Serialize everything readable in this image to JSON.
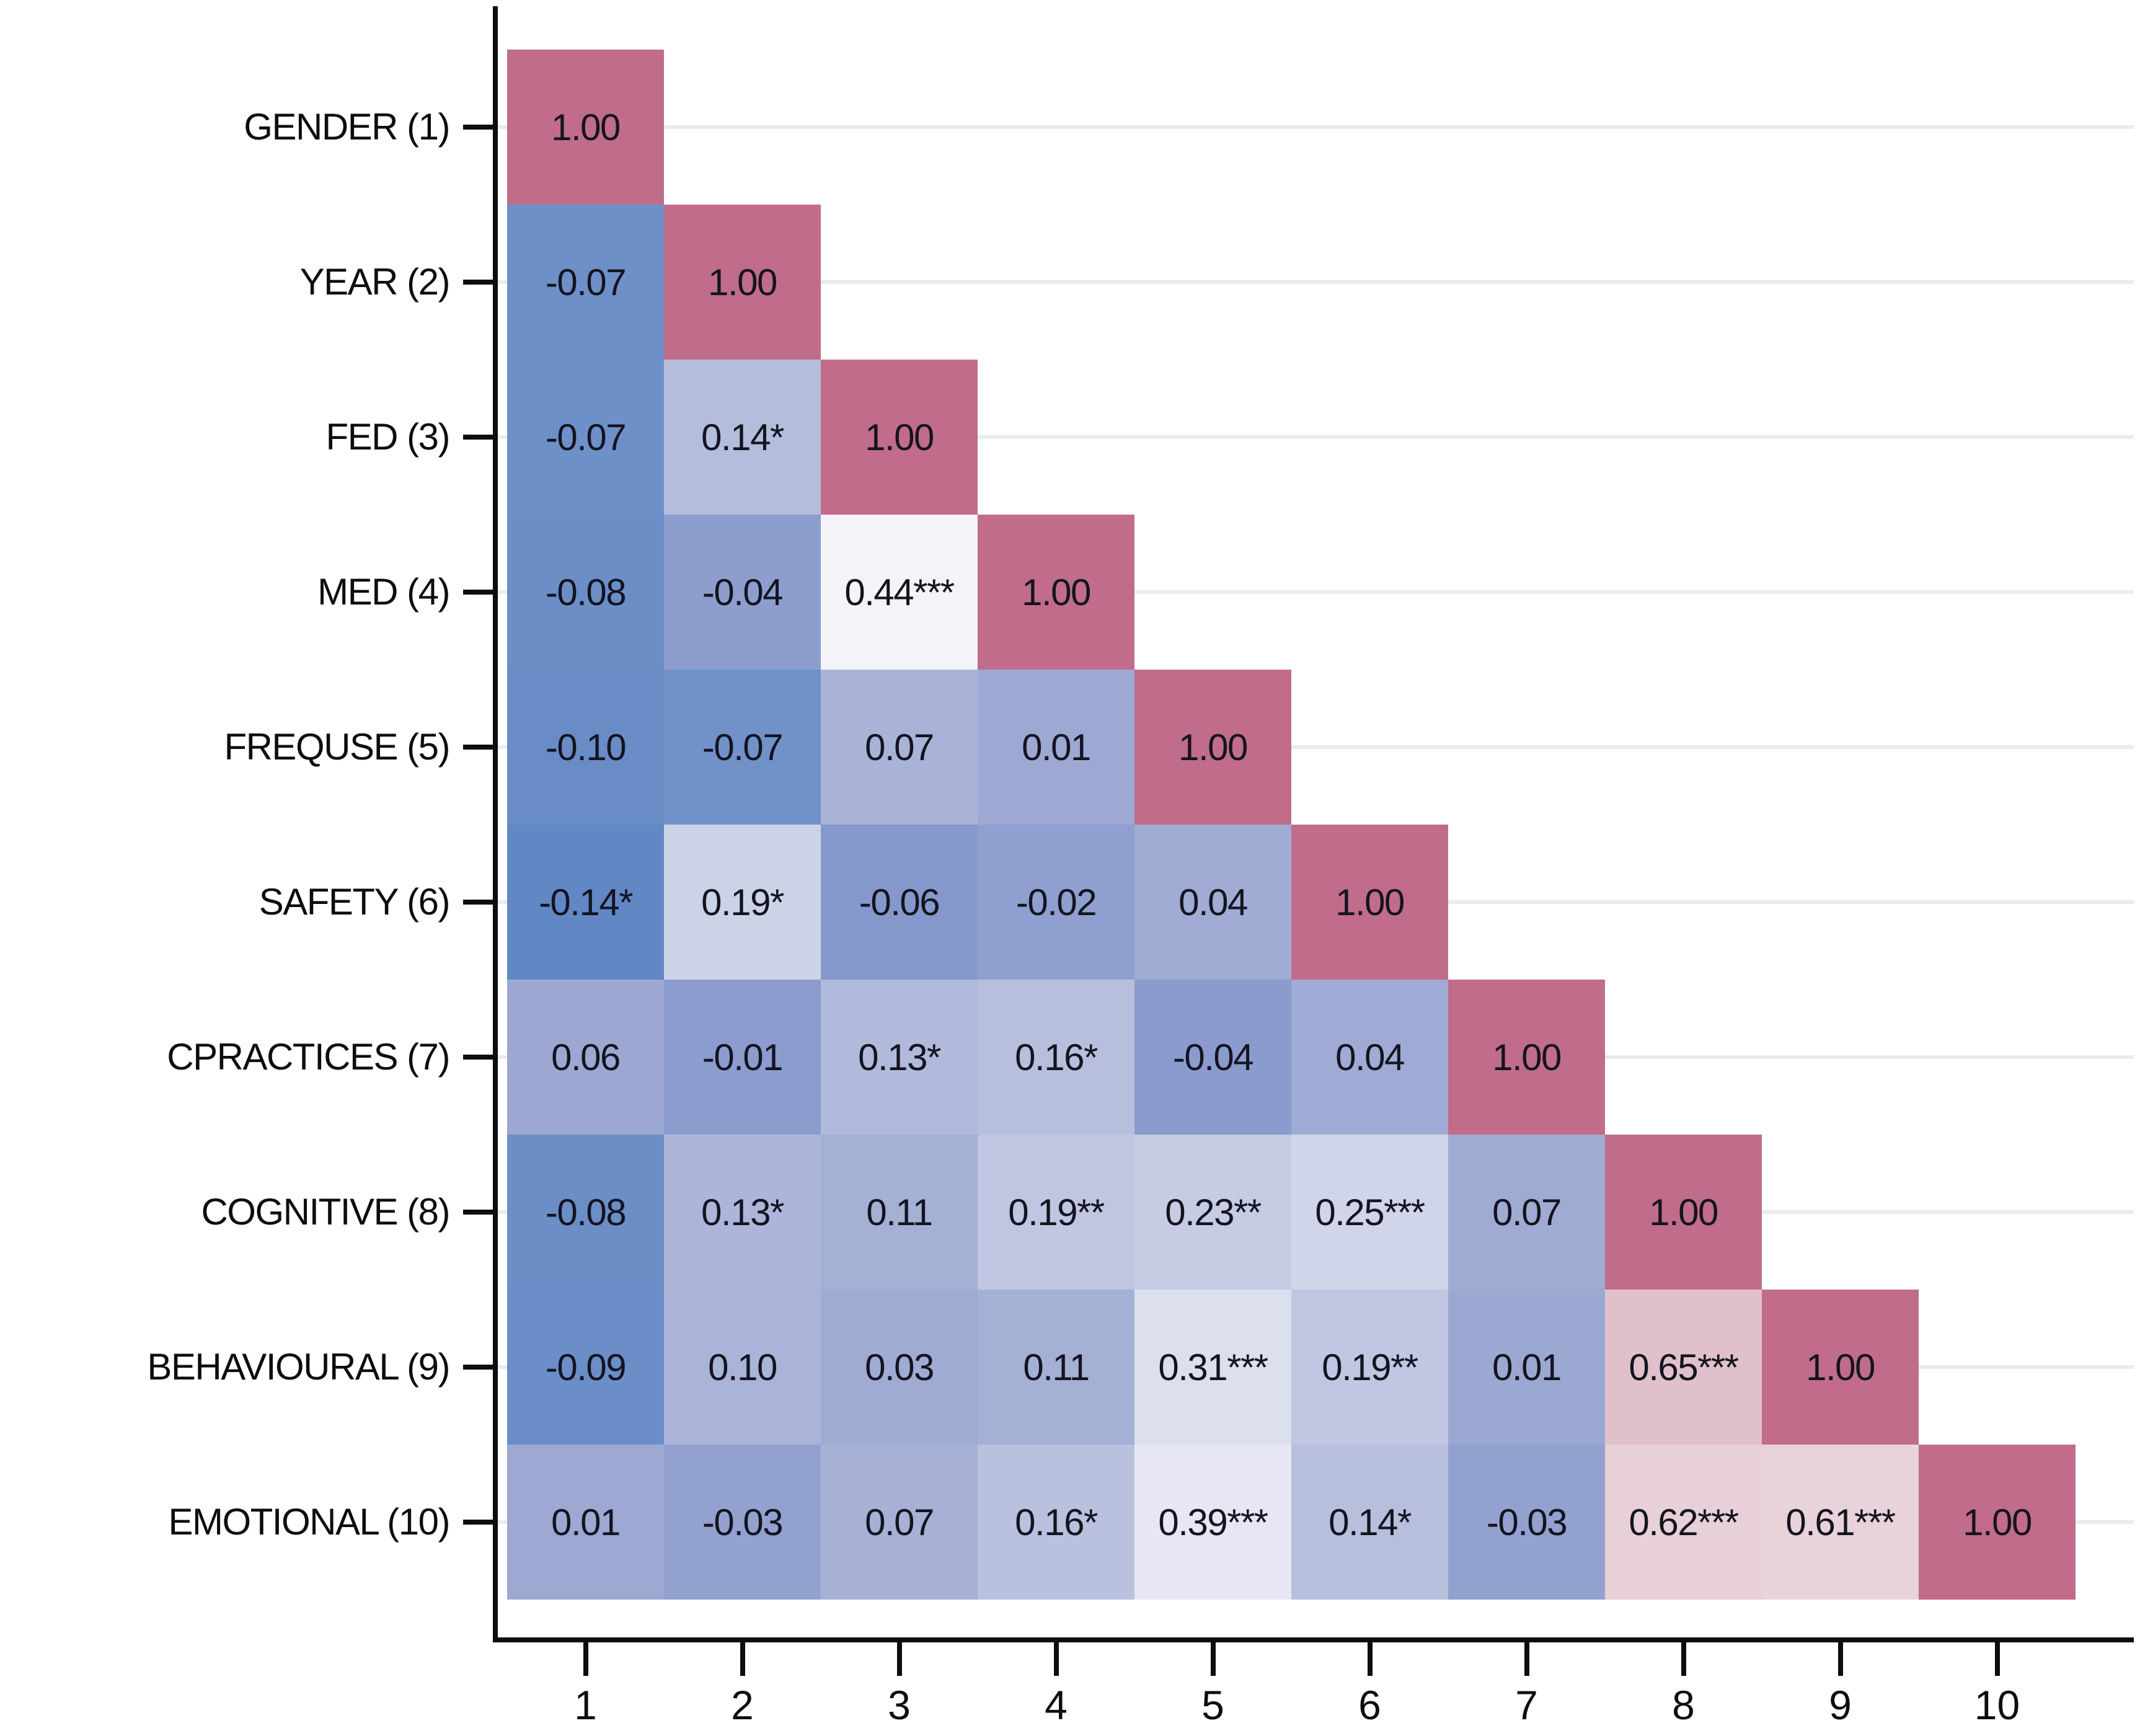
{
  "figure": {
    "background_color": "#ffffff",
    "axis_color": "#0d0d0d",
    "gridline_color": "#e9edef",
    "value_text_color": "#141420",
    "diagonal_color": "#c06c8a"
  },
  "chart_data": {
    "type": "heatmap",
    "subtype": "lower-triangular-correlation-matrix",
    "title": "",
    "xlabel": "",
    "ylabel": "",
    "legend": "none",
    "grid": "faint horizontal gridlines at each row center",
    "colormap": "diverging blue (negative) to white (~0.4) to rose (1.0)",
    "row_labels": [
      "GENDER (1)",
      "YEAR (2)",
      "FED (3)",
      "MED (4)",
      "FREQUSE (5)",
      "SAFETY (6)",
      "CPRACTICES (7)",
      "COGNITIVE (8)",
      "BEHAVIOURAL (9)",
      "EMOTIONAL (10)"
    ],
    "x_tick_labels": [
      "1",
      "2",
      "3",
      "4",
      "5",
      "6",
      "7",
      "8",
      "9",
      "10"
    ],
    "cells": [
      [
        {
          "label": "1.00",
          "value": 1.0,
          "color": "#c06c8a"
        }
      ],
      [
        {
          "label": "-0.07",
          "value": -0.07,
          "color": "#6e90c8"
        },
        {
          "label": "1.00",
          "value": 1.0,
          "color": "#c06c8a"
        }
      ],
      [
        {
          "label": "-0.07",
          "value": -0.07,
          "color": "#6e90c8"
        },
        {
          "label": "0.14*",
          "value": 0.14,
          "color": "#b5bddc"
        },
        {
          "label": "1.00",
          "value": 1.0,
          "color": "#c06c8a"
        }
      ],
      [
        {
          "label": "-0.08",
          "value": -0.08,
          "color": "#6b8ec7"
        },
        {
          "label": "-0.04",
          "value": -0.04,
          "color": "#8d9dce"
        },
        {
          "label": "0.44***",
          "value": 0.44,
          "color": "#f4f3f7"
        },
        {
          "label": "1.00",
          "value": 1.0,
          "color": "#c06c8a"
        }
      ],
      [
        {
          "label": "-0.10",
          "value": -0.1,
          "color": "#698cc6"
        },
        {
          "label": "-0.07",
          "value": -0.07,
          "color": "#7092c9"
        },
        {
          "label": "0.07",
          "value": 0.07,
          "color": "#a9b3d7"
        },
        {
          "label": "0.01",
          "value": 0.01,
          "color": "#9da9d2"
        },
        {
          "label": "1.00",
          "value": 1.0,
          "color": "#c06c8a"
        }
      ],
      [
        {
          "label": "-0.14*",
          "value": -0.14,
          "color": "#6187c4"
        },
        {
          "label": "0.19*",
          "value": 0.19,
          "color": "#cdd3e7"
        },
        {
          "label": "-0.06",
          "value": -0.06,
          "color": "#8598cb"
        },
        {
          "label": "-0.02",
          "value": -0.02,
          "color": "#8f9fcf"
        },
        {
          "label": "0.04",
          "value": 0.04,
          "color": "#a0acd3"
        },
        {
          "label": "1.00",
          "value": 1.0,
          "color": "#c06c8a"
        }
      ],
      [
        {
          "label": "0.06",
          "value": 0.06,
          "color": "#9ca8d1"
        },
        {
          "label": "-0.01",
          "value": -0.01,
          "color": "#8c9cce"
        },
        {
          "label": "0.13*",
          "value": 0.13,
          "color": "#b1bada"
        },
        {
          "label": "0.16*",
          "value": 0.16,
          "color": "#b7bfdd"
        },
        {
          "label": "-0.04",
          "value": -0.04,
          "color": "#8b9bce"
        },
        {
          "label": "0.04",
          "value": 0.04,
          "color": "#9fabd4"
        },
        {
          "label": "1.00",
          "value": 1.0,
          "color": "#c06c8a"
        }
      ],
      [
        {
          "label": "-0.08",
          "value": -0.08,
          "color": "#6b8ec7"
        },
        {
          "label": "0.13*",
          "value": 0.13,
          "color": "#adb6d9"
        },
        {
          "label": "0.11",
          "value": 0.11,
          "color": "#a5b0d5"
        },
        {
          "label": "0.19**",
          "value": 0.19,
          "color": "#c0c6e2"
        },
        {
          "label": "0.23**",
          "value": 0.23,
          "color": "#c7cce5"
        },
        {
          "label": "0.25***",
          "value": 0.25,
          "color": "#d1d5e9"
        },
        {
          "label": "0.07",
          "value": 0.07,
          "color": "#9fabd3"
        },
        {
          "label": "1.00",
          "value": 1.0,
          "color": "#c06c8a"
        }
      ],
      [
        {
          "label": "-0.09",
          "value": -0.09,
          "color": "#6b8ec8"
        },
        {
          "label": "0.10",
          "value": 0.1,
          "color": "#aab4d8"
        },
        {
          "label": "0.03",
          "value": 0.03,
          "color": "#9fabd3"
        },
        {
          "label": "0.11",
          "value": 0.11,
          "color": "#a5b0d5"
        },
        {
          "label": "0.31***",
          "value": 0.31,
          "color": "#dcdfee"
        },
        {
          "label": "0.19**",
          "value": 0.19,
          "color": "#c1c7e2"
        },
        {
          "label": "0.01",
          "value": 0.01,
          "color": "#9ba8d1"
        },
        {
          "label": "0.65***",
          "value": 0.65,
          "color": "#e0c1cb"
        },
        {
          "label": "1.00",
          "value": 1.0,
          "color": "#c06c8a"
        }
      ],
      [
        {
          "label": "0.01",
          "value": 0.01,
          "color": "#9da9d2"
        },
        {
          "label": "-0.03",
          "value": -0.03,
          "color": "#93a1cf"
        },
        {
          "label": "0.07",
          "value": 0.07,
          "color": "#a7b1d6"
        },
        {
          "label": "0.16*",
          "value": 0.16,
          "color": "#bac1df"
        },
        {
          "label": "0.39***",
          "value": 0.39,
          "color": "#e6e7f2"
        },
        {
          "label": "0.14*",
          "value": 0.14,
          "color": "#b7bfdd"
        },
        {
          "label": "-0.03",
          "value": -0.03,
          "color": "#93a1cf"
        },
        {
          "label": "0.62***",
          "value": 0.62,
          "color": "#e7d0d8"
        },
        {
          "label": "0.61***",
          "value": 0.61,
          "color": "#e9d3da"
        },
        {
          "label": "1.00",
          "value": 1.0,
          "color": "#c06c8a"
        }
      ]
    ]
  }
}
